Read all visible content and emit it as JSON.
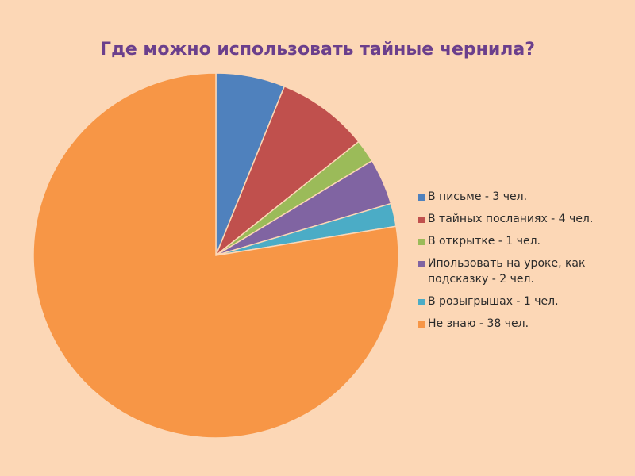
{
  "chart_data": {
    "type": "pie",
    "title": "Где можно использовать тайные чернила?",
    "categories": [
      "В письме -  3 чел.",
      "В тайных посланиях - 4 чел.",
      "В открытке  - 1 чел.",
      "Ипользовать на уроке, как подсказку  - 2 чел.",
      "В розыгрышах - 1 чел.",
      "Не знаю - 38 чел."
    ],
    "values": [
      3,
      4,
      1,
      2,
      1,
      38
    ],
    "colors": [
      "#4f81bd",
      "#c0504d",
      "#9bbb59",
      "#8064a2",
      "#4bacc6",
      "#f79646"
    ],
    "legend_position": "right"
  }
}
